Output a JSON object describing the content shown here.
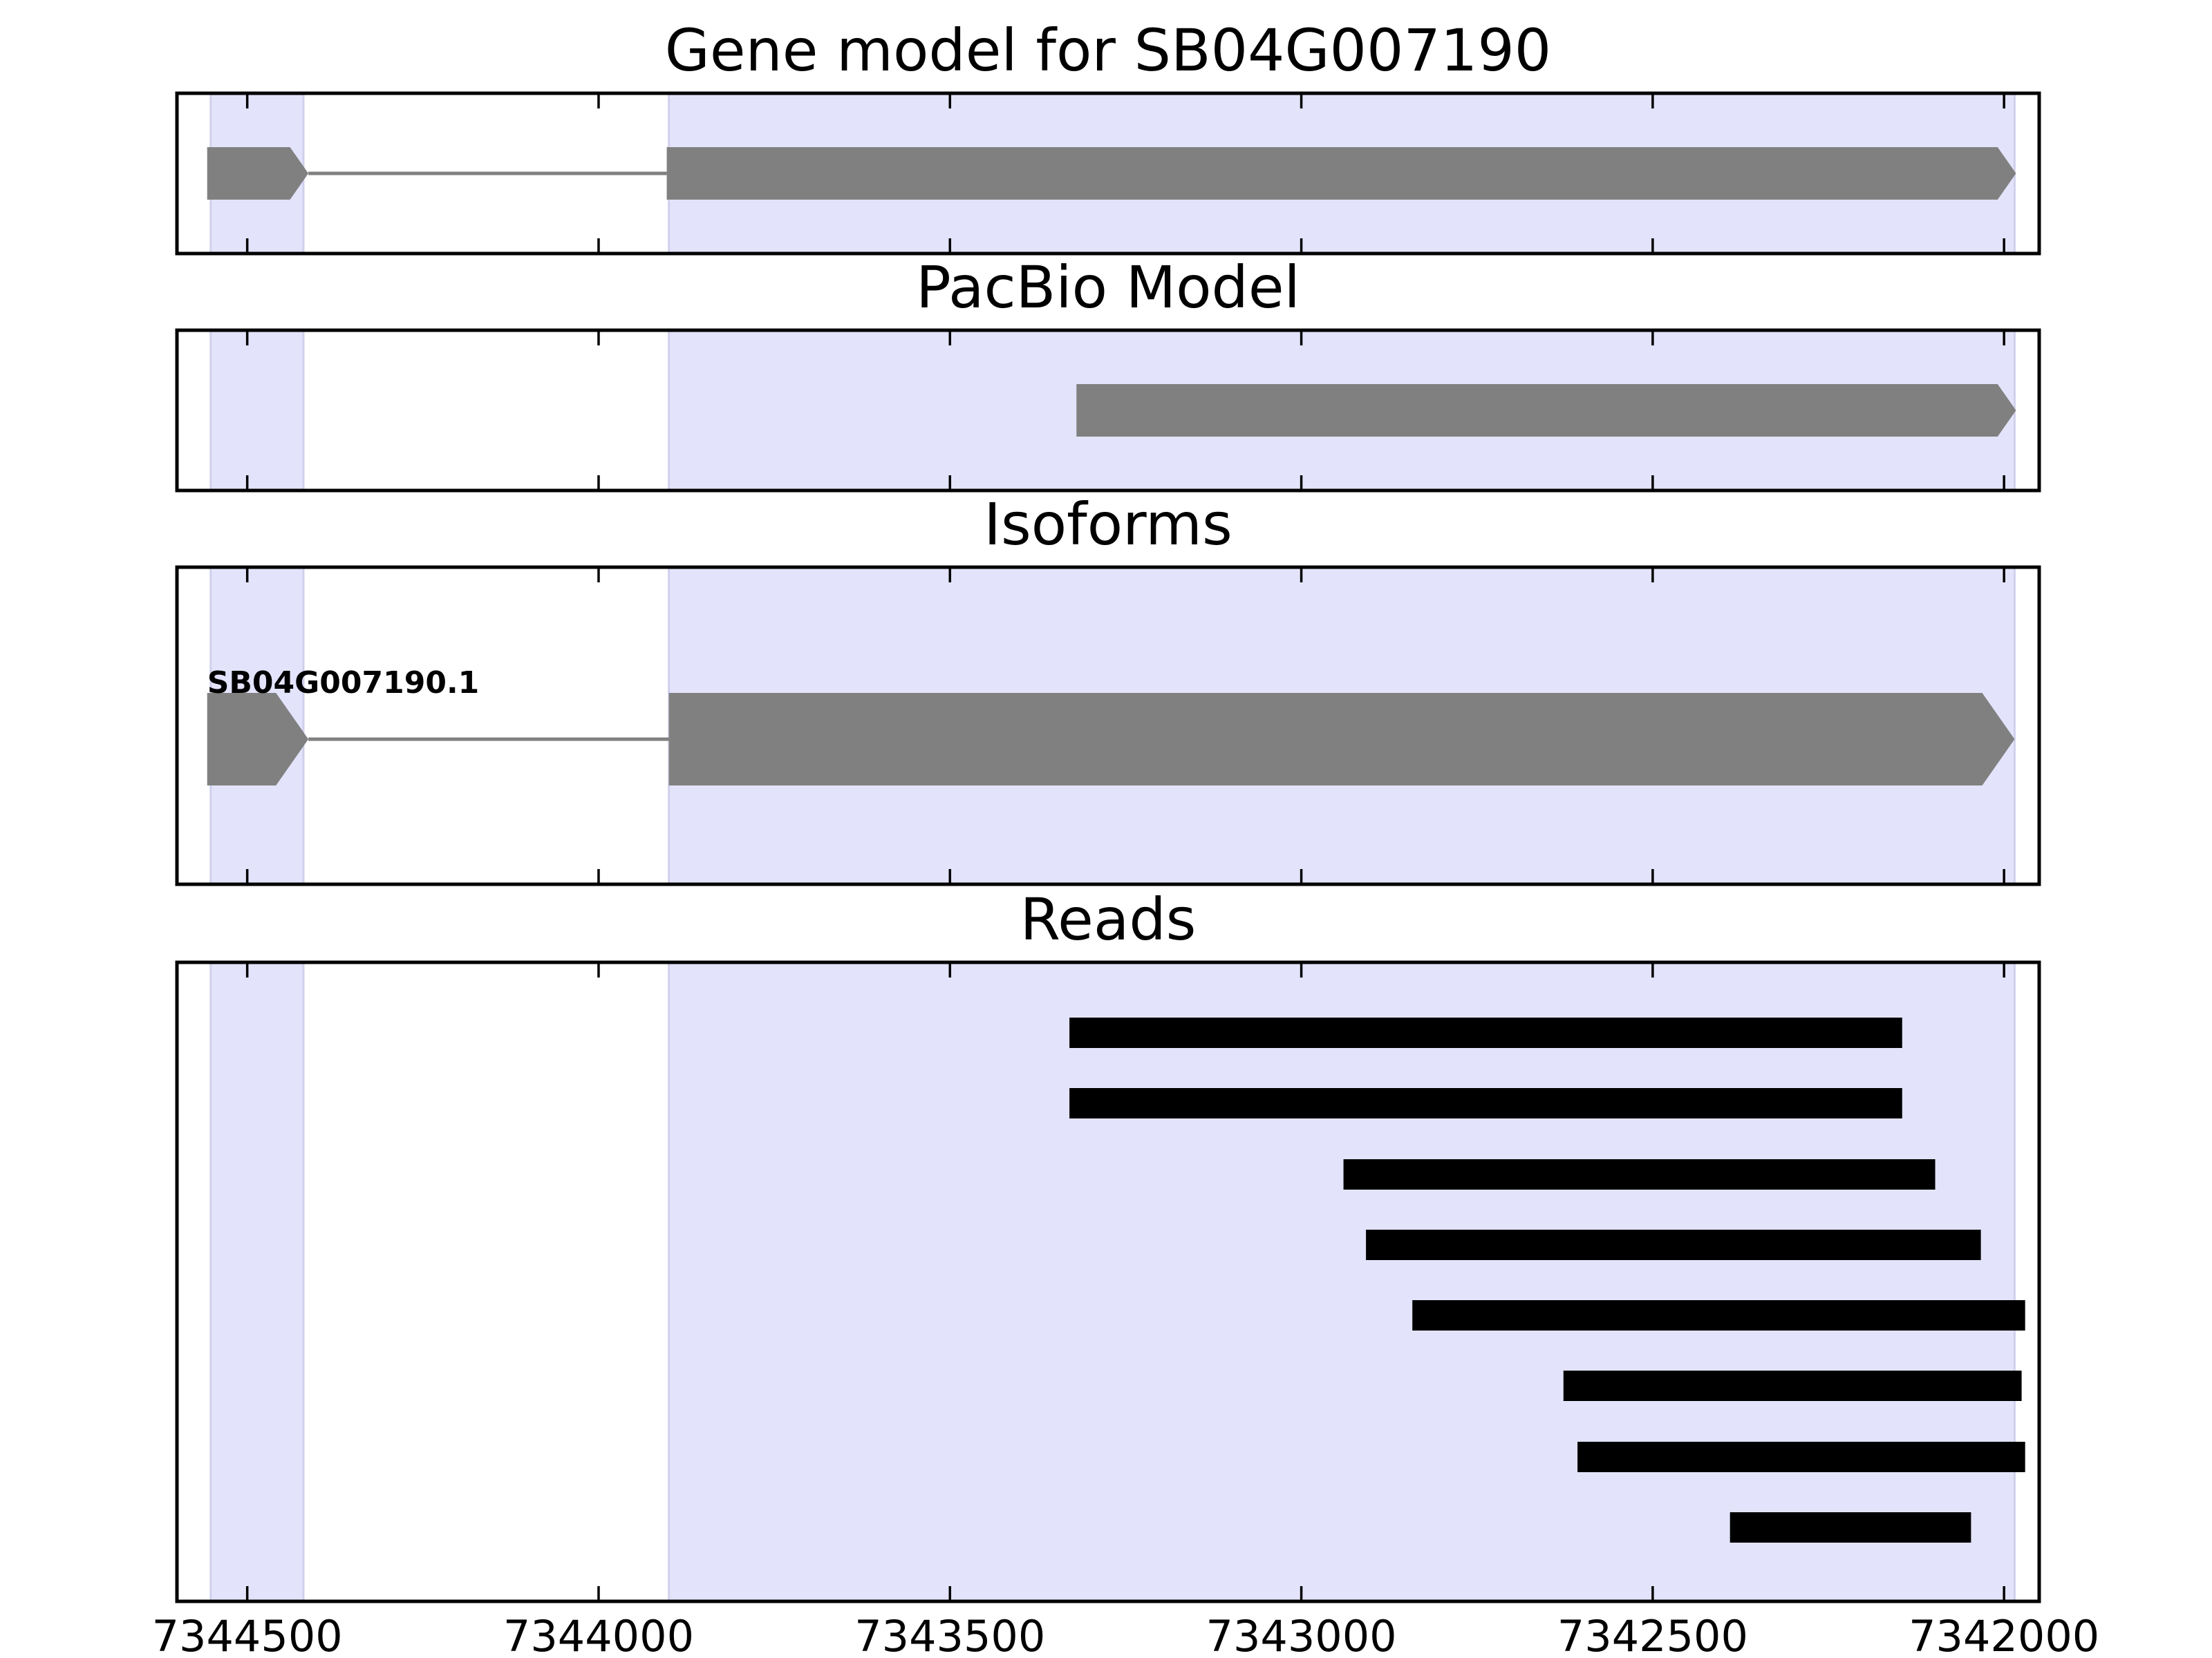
{
  "chart_data": {
    "type": "gene-track",
    "x_axis": {
      "range": [
        7344600,
        7341950
      ],
      "reversed": true,
      "ticks": [
        7344500,
        7344000,
        7343500,
        7343000,
        7342500,
        7342000
      ],
      "tick_labels": [
        "7344500",
        "7344000",
        "7343500",
        "7343000",
        "7342500",
        "7342000"
      ]
    },
    "colors": {
      "exon": "#808080",
      "read": "#000000",
      "highlight": "#e3e3fb",
      "intron": "#808080"
    },
    "highlight_regions": [
      {
        "start": 7344552,
        "end": 7344420
      },
      {
        "start": 7343900,
        "end": 7341985
      }
    ],
    "panels": [
      {
        "id": "gene-model",
        "title": "Gene model for SB04G007190",
        "exons": [
          {
            "start": 7344557,
            "end": 7344413
          },
          {
            "start": 7343903,
            "end": 7341983
          }
        ],
        "introns": [
          {
            "start": 7344413,
            "end": 7343903
          }
        ],
        "strand": "-"
      },
      {
        "id": "pacbio-model",
        "title": "PacBio Model",
        "exons": [
          {
            "start": 7343320,
            "end": 7341983
          }
        ],
        "introns": [],
        "strand": "-"
      },
      {
        "id": "isoforms",
        "title": "Isoforms",
        "isoforms": [
          {
            "label": "SB04G007190.1",
            "exons": [
              {
                "start": 7344557,
                "end": 7344413
              },
              {
                "start": 7343900,
                "end": 7341985
              }
            ],
            "introns": [
              {
                "start": 7344413,
                "end": 7343900
              }
            ]
          }
        ],
        "strand": "-"
      },
      {
        "id": "reads",
        "title": "Reads",
        "reads": [
          {
            "start": 7343330,
            "end": 7342145
          },
          {
            "start": 7343330,
            "end": 7342145
          },
          {
            "start": 7342940,
            "end": 7342098
          },
          {
            "start": 7342908,
            "end": 7342033
          },
          {
            "start": 7342842,
            "end": 7341970
          },
          {
            "start": 7342627,
            "end": 7341975
          },
          {
            "start": 7342607,
            "end": 7341970
          },
          {
            "start": 7342390,
            "end": 7342047
          }
        ]
      }
    ]
  }
}
